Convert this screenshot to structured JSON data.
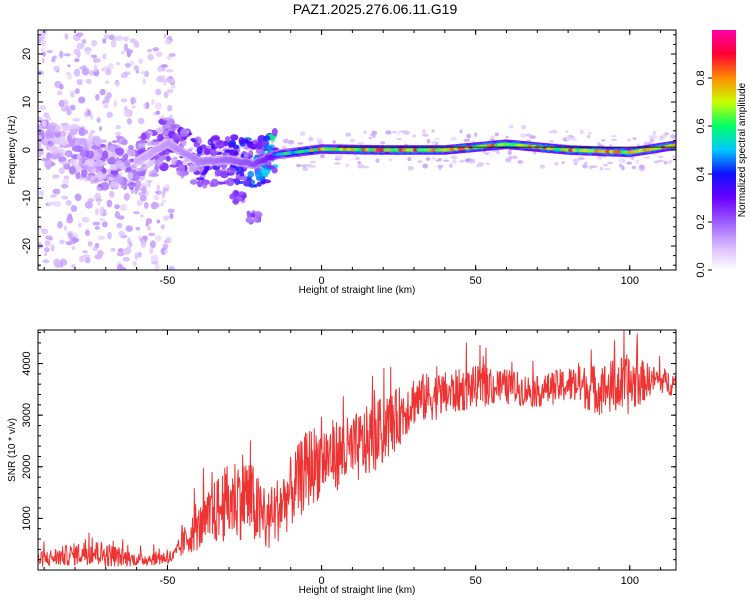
{
  "title": "PAZ1.2025.276.06.11.G19",
  "chart_data": [
    {
      "type": "heatmap",
      "xlabel": "Height of straight line (km)",
      "ylabel": "Frequency (Hz)",
      "xlim": [
        -92,
        115
      ],
      "ylim": [
        -25,
        25
      ],
      "xticks": [
        -50,
        0,
        50,
        100
      ],
      "yticks": [
        -20,
        -10,
        0,
        10,
        20
      ],
      "colorbar": {
        "label": "Normalized spectral amplitude",
        "ticks": [
          0.0,
          0.2,
          0.4,
          0.6,
          0.8
        ],
        "range": [
          0,
          1
        ],
        "colors": [
          "#ffffff",
          "#d7b8ff",
          "#9b5cff",
          "#6a00ff",
          "#1010ff",
          "#00c8ff",
          "#00ff66",
          "#c8ff00",
          "#ff8c00",
          "#ff0033",
          "#ff00aa"
        ]
      },
      "ridge": {
        "description_points": [
          {
            "x": -90,
            "f": 1.5,
            "amp": 0.15
          },
          {
            "x": -80,
            "f": 0,
            "amp": 0.15
          },
          {
            "x": -70,
            "f": -3,
            "amp": 0.18
          },
          {
            "x": -60,
            "f": -2.5,
            "amp": 0.2
          },
          {
            "x": -50,
            "f": 1.5,
            "amp": 0.25
          },
          {
            "x": -40,
            "f": -2.5,
            "amp": 0.3
          },
          {
            "x": -30,
            "f": -2,
            "amp": 0.35
          },
          {
            "x": -22,
            "f": -3,
            "amp": 0.4
          },
          {
            "x": -15,
            "f": -1,
            "amp": 0.55
          },
          {
            "x": 0,
            "f": 0.2,
            "amp": 0.8
          },
          {
            "x": 20,
            "f": 0,
            "amp": 0.85
          },
          {
            "x": 40,
            "f": 0,
            "amp": 0.85
          },
          {
            "x": 60,
            "f": 1.2,
            "amp": 0.85
          },
          {
            "x": 80,
            "f": 0,
            "amp": 0.85
          },
          {
            "x": 100,
            "f": -0.5,
            "amp": 0.85
          },
          {
            "x": 115,
            "f": 1,
            "amp": 0.85
          }
        ],
        "scatter_region": {
          "x_from": -92,
          "x_to": -48,
          "f_from": -25,
          "f_to": 25
        },
        "secondary_branch": [
          {
            "x": -27,
            "f": -10
          },
          {
            "x": -22,
            "f": -14
          }
        ]
      }
    },
    {
      "type": "line",
      "xlabel": "Height of straight line (km)",
      "ylabel": "SNR (10 * v/v)",
      "xlim": [
        -92,
        115
      ],
      "ylim": [
        0,
        4650
      ],
      "xticks": [
        -50,
        0,
        50,
        100
      ],
      "yticks": [
        1000,
        2000,
        3000,
        4000
      ],
      "color": "#ee3333",
      "series_envelope": [
        {
          "x": -92,
          "mean": 200,
          "noise": 150
        },
        {
          "x": -75,
          "mean": 350,
          "noise": 250
        },
        {
          "x": -70,
          "mean": 300,
          "noise": 250
        },
        {
          "x": -60,
          "mean": 200,
          "noise": 120
        },
        {
          "x": -48,
          "mean": 250,
          "noise": 150
        },
        {
          "x": -44,
          "mean": 600,
          "noise": 300
        },
        {
          "x": -38,
          "mean": 900,
          "noise": 500
        },
        {
          "x": -33,
          "mean": 1200,
          "noise": 700
        },
        {
          "x": -25,
          "mean": 1500,
          "noise": 900
        },
        {
          "x": -18,
          "mean": 900,
          "noise": 600
        },
        {
          "x": -10,
          "mean": 1500,
          "noise": 700
        },
        {
          "x": -4,
          "mean": 2000,
          "noise": 800
        },
        {
          "x": 2,
          "mean": 2200,
          "noise": 700
        },
        {
          "x": 10,
          "mean": 2300,
          "noise": 700
        },
        {
          "x": 18,
          "mean": 2600,
          "noise": 700
        },
        {
          "x": 24,
          "mean": 2900,
          "noise": 600
        },
        {
          "x": 30,
          "mean": 3300,
          "noise": 500
        },
        {
          "x": 40,
          "mean": 3400,
          "noise": 450
        },
        {
          "x": 50,
          "mean": 3550,
          "noise": 400
        },
        {
          "x": 60,
          "mean": 3550,
          "noise": 350
        },
        {
          "x": 70,
          "mean": 3450,
          "noise": 300
        },
        {
          "x": 80,
          "mean": 3600,
          "noise": 350
        },
        {
          "x": 90,
          "mean": 3500,
          "noise": 500
        },
        {
          "x": 100,
          "mean": 3600,
          "noise": 600
        },
        {
          "x": 108,
          "mean": 3700,
          "noise": 250
        },
        {
          "x": 115,
          "mean": 3600,
          "noise": 250
        }
      ]
    }
  ]
}
